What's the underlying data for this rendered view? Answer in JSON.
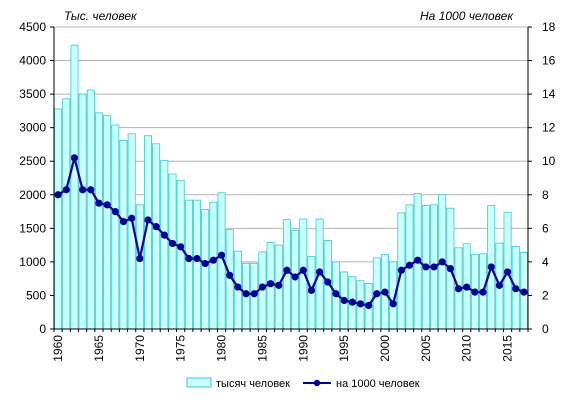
{
  "chart_data": {
    "type": "bar+line",
    "left_axis_title": "Тыс. человек",
    "right_axis_title": "На 1000 человек",
    "x": [
      1960,
      1961,
      1962,
      1963,
      1964,
      1965,
      1966,
      1967,
      1968,
      1969,
      1970,
      1971,
      1972,
      1973,
      1974,
      1975,
      1976,
      1977,
      1978,
      1979,
      1980,
      1981,
      1982,
      1983,
      1984,
      1985,
      1986,
      1987,
      1988,
      1989,
      1990,
      1991,
      1992,
      1993,
      1994,
      1995,
      1996,
      1997,
      1998,
      1999,
      2000,
      2001,
      2002,
      2003,
      2004,
      2005,
      2006,
      2007,
      2008,
      2009,
      2010,
      2011,
      2012,
      2013,
      2014,
      2015,
      2016,
      2017
    ],
    "x_tick_labels": [
      "1960",
      "1965",
      "1970",
      "1975",
      "1980",
      "1985",
      "1990",
      "1995",
      "2000",
      "2005",
      "2010",
      "2015"
    ],
    "x_tick_years": [
      1960,
      1965,
      1970,
      1975,
      1980,
      1985,
      1990,
      1995,
      2000,
      2005,
      2010,
      2015
    ],
    "ylim_left": [
      0,
      4500
    ],
    "yticks_left": [
      "0",
      "500",
      "1000",
      "1500",
      "2000",
      "2500",
      "3000",
      "3500",
      "4000",
      "4500"
    ],
    "ylim_right": [
      0,
      18
    ],
    "yticks_right": [
      "0",
      "2",
      "4",
      "6",
      "8",
      "10",
      "12",
      "14",
      "16",
      "18"
    ],
    "grid": "horizontal",
    "legend_position": "bottom",
    "series": [
      {
        "name": "тысяч человек",
        "kind": "bar",
        "axis": "left",
        "color": "#ccffff",
        "edge_color": "#33cccc",
        "values": [
          3280,
          3430,
          4230,
          3500,
          3560,
          3220,
          3180,
          3040,
          2810,
          2910,
          1850,
          2880,
          2760,
          2510,
          2310,
          2210,
          1920,
          1920,
          1780,
          1890,
          2030,
          1480,
          1160,
          980,
          980,
          1150,
          1290,
          1250,
          1630,
          1470,
          1640,
          1080,
          1640,
          1320,
          1000,
          850,
          780,
          720,
          680,
          1060,
          1110,
          1000,
          1730,
          1850,
          2020,
          1840,
          1850,
          2000,
          1800,
          1210,
          1270,
          1110,
          1120,
          1840,
          1280,
          1740,
          1230,
          1140
        ]
      },
      {
        "name": "на 1000 человек",
        "kind": "line",
        "axis": "right",
        "color": "#000099",
        "values": [
          8.0,
          8.3,
          10.2,
          8.3,
          8.3,
          7.5,
          7.4,
          7.0,
          6.4,
          6.6,
          4.2,
          6.5,
          6.1,
          5.6,
          5.1,
          4.9,
          4.2,
          4.2,
          3.9,
          4.1,
          4.4,
          3.2,
          2.5,
          2.1,
          2.1,
          2.5,
          2.7,
          2.6,
          3.5,
          3.1,
          3.5,
          2.3,
          3.4,
          2.8,
          2.1,
          1.7,
          1.6,
          1.5,
          1.4,
          2.1,
          2.2,
          1.5,
          3.5,
          3.8,
          4.1,
          3.7,
          3.7,
          4.0,
          3.6,
          2.4,
          2.5,
          2.2,
          2.2,
          3.7,
          2.6,
          3.4,
          2.4,
          2.2
        ]
      }
    ]
  }
}
